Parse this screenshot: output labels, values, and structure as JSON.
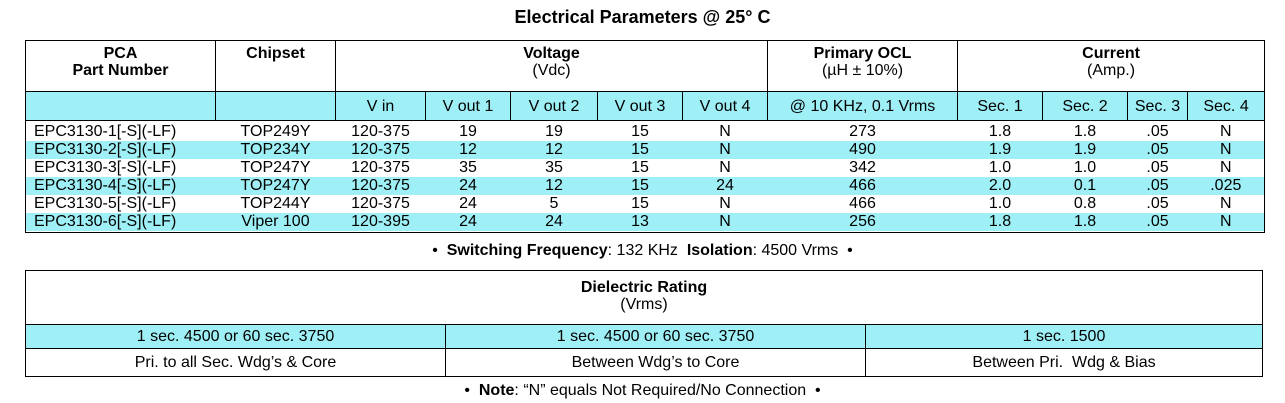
{
  "title": "Electrical Parameters @ 25° C",
  "table": {
    "header": {
      "part": [
        "PCA",
        "Part Number"
      ],
      "chipset": "Chipset",
      "voltage": {
        "title": "Voltage",
        "unit": "(Vdc)"
      },
      "ocl": {
        "title": "Primary OCL",
        "unit": "(µH ± 10%)"
      },
      "current": {
        "title": "Current",
        "unit": "(Amp.)"
      }
    },
    "subheader": [
      "V in",
      "V out 1",
      "V out 2",
      "V out 3",
      "V out 4",
      "@ 10 KHz, 0.1 Vrms",
      "Sec. 1",
      "Sec. 2",
      "Sec. 3",
      "Sec. 4"
    ],
    "rows": [
      [
        "EPC3130-1[-S](-LF)",
        "TOP249Y",
        "120-375",
        "19",
        "19",
        "15",
        "N",
        "273",
        "1.8",
        "1.8",
        ".05",
        "N"
      ],
      [
        "EPC3130-2[-S](-LF)",
        "TOP234Y",
        "120-375",
        "12",
        "12",
        "15",
        "N",
        "490",
        "1.9",
        "1.9",
        ".05",
        "N"
      ],
      [
        "EPC3130-3[-S](-LF)",
        "TOP247Y",
        "120-375",
        "35",
        "35",
        "15",
        "N",
        "342",
        "1.0",
        "1.0",
        ".05",
        "N"
      ],
      [
        "EPC3130-4[-S](-LF)",
        "TOP247Y",
        "120-375",
        "24",
        "12",
        "15",
        "24",
        "466",
        "2.0",
        "0.1",
        ".05",
        ".025"
      ],
      [
        "EPC3130-5[-S](-LF)",
        "TOP244Y",
        "120-375",
        "24",
        "5",
        "15",
        "N",
        "466",
        "1.0",
        "0.8",
        ".05",
        "N"
      ],
      [
        "EPC3130-6[-S](-LF)",
        "Viper 100",
        "120-395",
        "24",
        "24",
        "13",
        "N",
        "256",
        "1.8",
        "1.8",
        ".05",
        "N"
      ]
    ]
  },
  "specs": {
    "bullet": "•",
    "freq_label": "Switching Frequency",
    "freq_value": ": 132 KHz",
    "iso_label": "Isolation",
    "iso_value": ": 4500 Vrms"
  },
  "dielectric": {
    "title": "Dielectric Rating",
    "unit": "(Vrms)",
    "ratings": [
      "1 sec. 4500 or 60 sec. 3750",
      "1 sec. 4500 or 60 sec. 3750",
      "1 sec. 1500"
    ],
    "between": [
      "Pri. to all Sec. Wdg’s & Core",
      "Between Wdg’s to Core",
      "Between Pri.  Wdg & Bias"
    ]
  },
  "note": {
    "label": "Note",
    "text": ": “N” equals Not Required/No Connection"
  }
}
